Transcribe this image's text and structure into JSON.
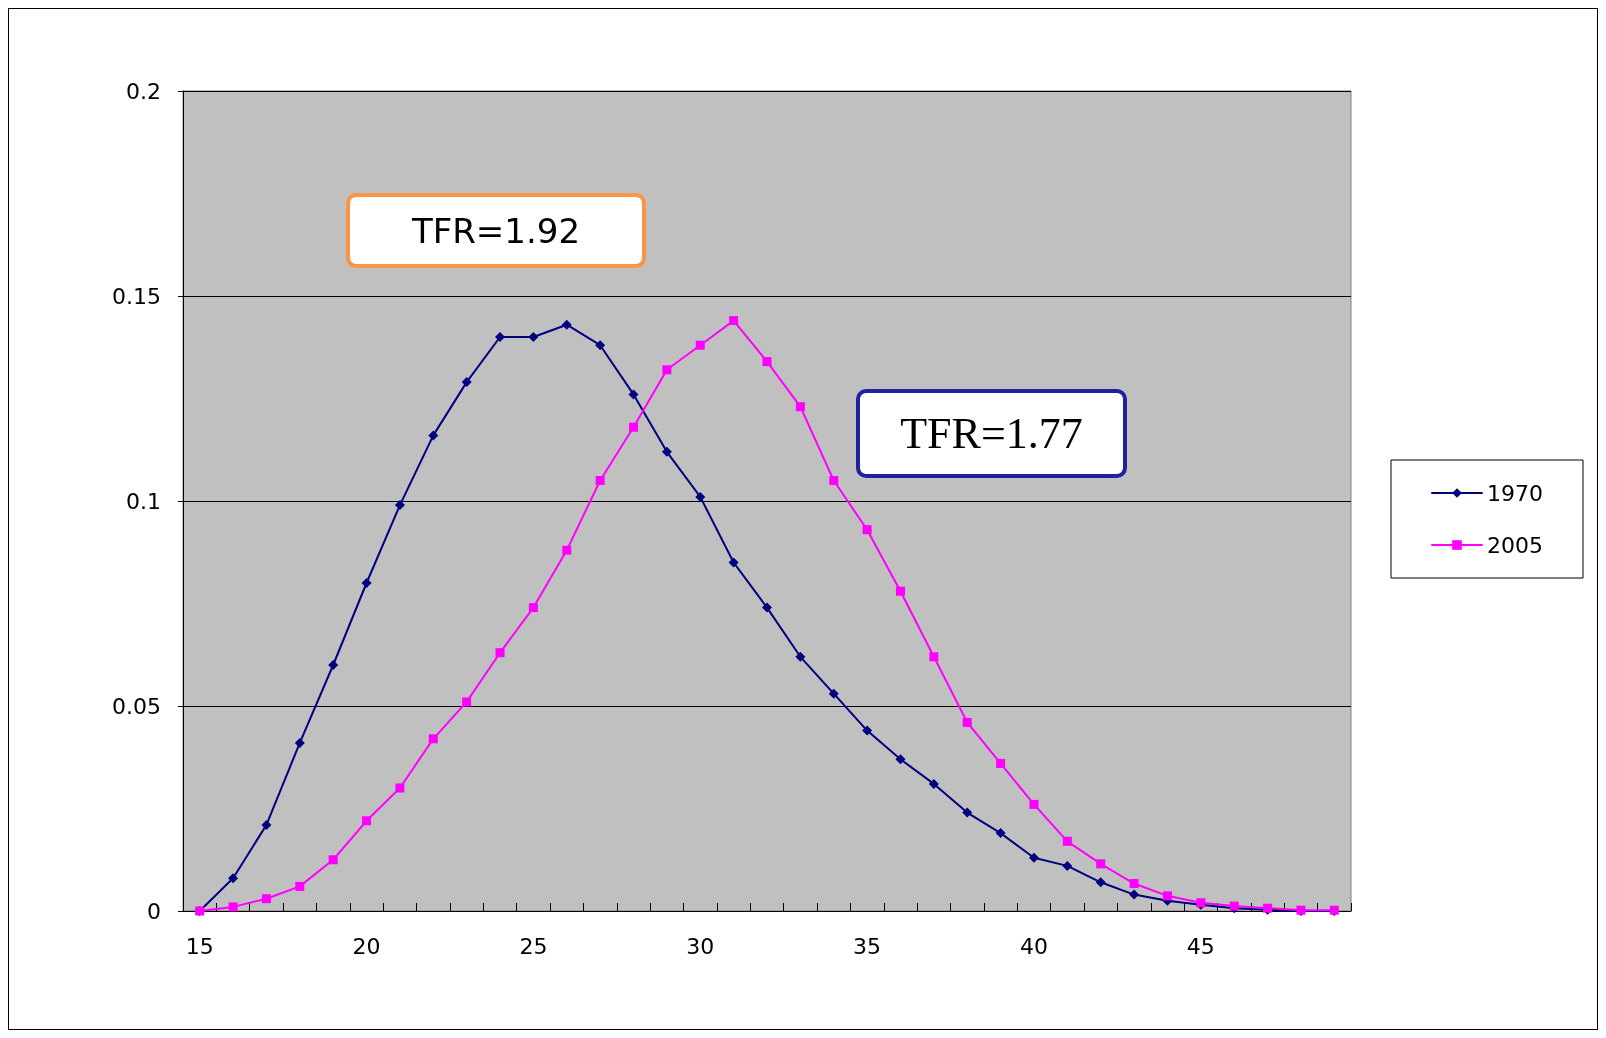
{
  "chart_data": {
    "type": "line",
    "categories": [
      "15",
      null,
      null,
      null,
      null,
      "20",
      null,
      null,
      null,
      null,
      "25",
      null,
      null,
      null,
      null,
      "30",
      null,
      null,
      null,
      null,
      "35",
      null,
      null,
      null,
      null,
      "40",
      null,
      null,
      null,
      null,
      "45",
      null,
      null,
      null,
      null
    ],
    "series": [
      {
        "name": "1970",
        "color": "#000080",
        "marker": "diamond",
        "values": [
          0,
          0.008,
          0.021,
          0.041,
          0.06,
          0.08,
          0.099,
          0.116,
          0.129,
          0.14,
          0.14,
          0.143,
          0.138,
          0.126,
          0.112,
          0.101,
          0.085,
          0.074,
          0.062,
          0.053,
          0.044,
          0.037,
          0.031,
          0.024,
          0.019,
          0.013,
          0.011,
          0.007,
          0.004,
          0.0025,
          0.0015,
          0.0007,
          0.0003,
          0,
          0
        ]
      },
      {
        "name": "2005",
        "color": "#ff00ff",
        "marker": "square",
        "values": [
          0,
          0.001,
          0.003,
          0.006,
          0.0125,
          0.022,
          0.03,
          0.042,
          0.051,
          0.063,
          0.074,
          0.088,
          0.105,
          0.118,
          0.132,
          0.138,
          0.144,
          0.134,
          0.123,
          0.105,
          0.093,
          0.078,
          0.062,
          0.046,
          0.036,
          0.026,
          0.017,
          0.0115,
          0.0067,
          0.0037,
          0.002,
          0.0012,
          0.0007,
          0.0002,
          0.0002
        ]
      }
    ],
    "ylim": [
      0,
      0.2
    ],
    "yticks": [
      0,
      0.05,
      0.1,
      0.15,
      0.2
    ],
    "grid": "y",
    "legend": "right",
    "annotations": [
      "TFR=1.92",
      "TFR=1.77"
    ]
  }
}
